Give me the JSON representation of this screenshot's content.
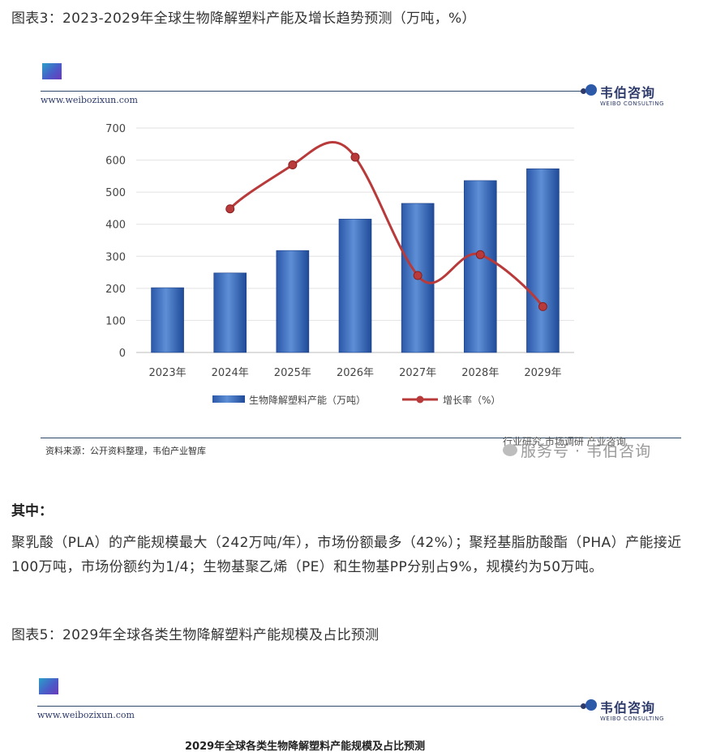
{
  "caption1": "图表3：2023-2029年全球生物降解塑料产能及增长趋势预测（万吨，%）",
  "panel1": {
    "website": "www.weibozixun.com",
    "brand_cn": "韦伯咨询",
    "brand_en": "WEIBO CONSULTING",
    "source": "资料来源：公开资料整理，韦伯产业智库",
    "watermark_small": "行业研究 市场调研 产业咨询",
    "watermark": "服务号 · 韦伯咨询"
  },
  "chart_data": {
    "type": "bar",
    "categories": [
      "2023年",
      "2024年",
      "2025年",
      "2026年",
      "2027年",
      "2028年",
      "2029年"
    ],
    "series": [
      {
        "name": "生物降解塑料产能（万吨）",
        "type": "bar",
        "values": [
          202,
          248,
          318,
          416,
          465,
          536,
          573
        ]
      },
      {
        "name": "增长率（%）",
        "type": "line",
        "values": [
          null,
          448,
          585,
          609,
          240,
          305,
          143
        ]
      }
    ],
    "yticks": [
      0,
      100,
      200,
      300,
      400,
      500,
      600,
      700
    ],
    "ylim": [
      0,
      700
    ],
    "legend": "bottom",
    "colors": {
      "bar": "#3f6fbf",
      "line": "#b83a3a"
    }
  },
  "section_head": "其中：",
  "paragraph": "聚乳酸（PLA）的产能规模最大（242万吨/年），市场份额最多（42%）；聚羟基脂肪酸酯（PHA）产能接近100万吨，市场份额约为1/4；生物基聚乙烯（PE）和生物基PP分别占9%，规模约为50万吨。",
  "caption2": "图表5：2029年全球各类生物降解塑料产能规模及占比预测",
  "panel2": {
    "website": "www.weibozixun.com",
    "brand_cn": "韦伯咨询",
    "brand_en": "WEIBO CONSULTING",
    "title": "2029年全球各类生物降解塑料产能规模及占比预测"
  }
}
